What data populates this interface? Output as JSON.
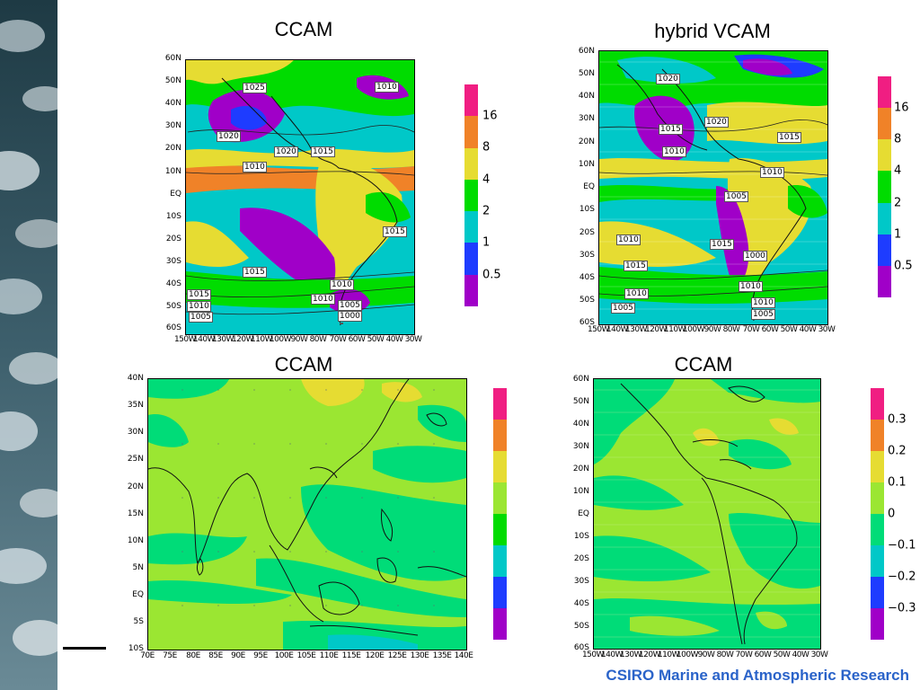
{
  "colors": {
    "sidebar_dark": "#2c4a55",
    "footer_text": "#2a63c9"
  },
  "footer": {
    "text": "CSIRO Marine and Atmospheric Research"
  },
  "chart_data": [
    {
      "type": "heatmap",
      "title": "CCAM",
      "x_ticks": [
        "150W",
        "140W",
        "130W",
        "120W",
        "110W",
        "100W",
        "90W",
        "80W",
        "70W",
        "60W",
        "50W",
        "40W",
        "30W"
      ],
      "y_ticks": [
        "60N",
        "50N",
        "40N",
        "30N",
        "20N",
        "10N",
        "EQ",
        "10S",
        "20S",
        "30S",
        "40S",
        "50S",
        "60S"
      ],
      "colorbar": {
        "colors": [
          "#a000c8",
          "#1e3cff",
          "#00c8c8",
          "#00dc00",
          "#e6dc32",
          "#f08228",
          "#f01e82"
        ],
        "labels": [
          "0.5",
          "1",
          "2",
          "4",
          "8",
          "16"
        ]
      },
      "contour_labels": [
        "1025",
        "1010",
        "1020",
        "1020",
        "1015",
        "1010",
        "1015",
        "1015",
        "1010",
        "1015",
        "1010",
        "1010",
        "1005",
        "1005",
        "1000"
      ]
    },
    {
      "type": "heatmap",
      "title": "hybrid VCAM",
      "x_ticks": [
        "150W",
        "140W",
        "130W",
        "120W",
        "110W",
        "100W",
        "90W",
        "80W",
        "70W",
        "60W",
        "50W",
        "40W",
        "30W"
      ],
      "y_ticks": [
        "60N",
        "50N",
        "40N",
        "30N",
        "20N",
        "10N",
        "EQ",
        "10S",
        "20S",
        "30S",
        "40S",
        "50S",
        "60S"
      ],
      "colorbar": {
        "colors": [
          "#a000c8",
          "#1e3cff",
          "#00c8c8",
          "#00dc00",
          "#e6dc32",
          "#f08228",
          "#f01e82"
        ],
        "labels": [
          "0.5",
          "1",
          "2",
          "4",
          "8",
          "16"
        ]
      },
      "contour_labels": [
        "1020",
        "1020",
        "1015",
        "1015",
        "1010",
        "1010",
        "1005",
        "1010",
        "1015",
        "1015",
        "1000",
        "1010",
        "1010",
        "1010",
        "1005",
        "1005"
      ]
    },
    {
      "type": "heatmap",
      "title": "CCAM",
      "x_ticks": [
        "70E",
        "75E",
        "80E",
        "85E",
        "90E",
        "95E",
        "100E",
        "105E",
        "110E",
        "115E",
        "120E",
        "125E",
        "130E",
        "135E",
        "140E"
      ],
      "y_ticks": [
        "40N",
        "35N",
        "30N",
        "25N",
        "20N",
        "15N",
        "10N",
        "5N",
        "EQ",
        "5S",
        "10S"
      ],
      "colorbar": {
        "colors": [
          "#a000c8",
          "#1e3cff",
          "#00c8c8",
          "#00dc00",
          "#9be632",
          "#e6dc32",
          "#f08228",
          "#f01e82"
        ],
        "labels": []
      }
    },
    {
      "type": "heatmap",
      "title": "CCAM",
      "x_ticks": [
        "150W",
        "140W",
        "130W",
        "120W",
        "110W",
        "100W",
        "90W",
        "80W",
        "70W",
        "60W",
        "50W",
        "40W",
        "30W"
      ],
      "y_ticks": [
        "60N",
        "50N",
        "40N",
        "30N",
        "20N",
        "10N",
        "EQ",
        "10S",
        "20S",
        "30S",
        "40S",
        "50S",
        "60S"
      ],
      "colorbar": {
        "colors": [
          "#a000c8",
          "#1e3cff",
          "#00c8c8",
          "#00dc78",
          "#9be632",
          "#e6dc32",
          "#f08228",
          "#f01e82"
        ],
        "labels": [
          "−0.3",
          "−0.2",
          "−0.1",
          "0",
          "0.1",
          "0.2",
          "0.3"
        ]
      }
    }
  ]
}
